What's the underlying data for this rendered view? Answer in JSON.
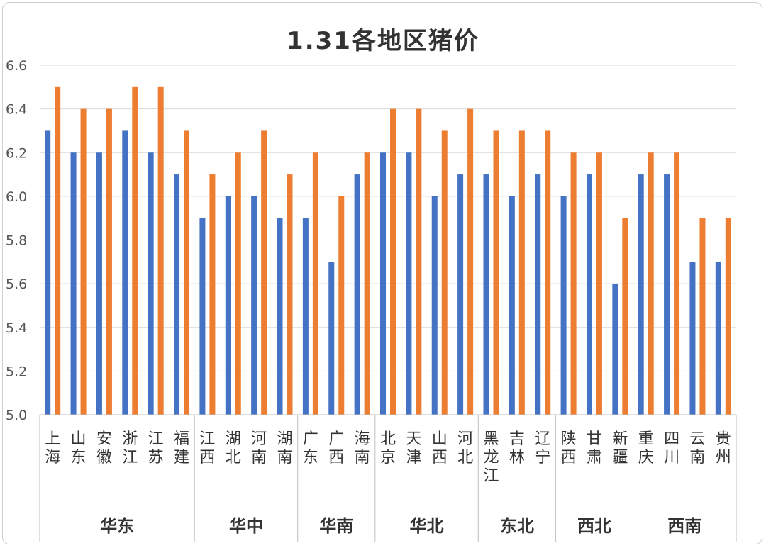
{
  "chart_data": {
    "type": "bar",
    "title": "1.31各地区猪价",
    "ylim": [
      5.0,
      6.6
    ],
    "yticks": [
      "5.0",
      "5.2",
      "5.4",
      "5.6",
      "5.8",
      "6.0",
      "6.2",
      "6.4",
      "6.6"
    ],
    "grid": true,
    "colors": [
      "#4472c4",
      "#ed7d31"
    ],
    "categories": [
      "上海",
      "山东",
      "安徽",
      "浙江",
      "江苏",
      "福建",
      "江西",
      "湖北",
      "河南",
      "湖南",
      "广东",
      "广西",
      "海南",
      "北京",
      "天津",
      "山西",
      "河北",
      "黑龙江",
      "吉林",
      "辽宁",
      "陕西",
      "甘肃",
      "新疆",
      "重庆",
      "四川",
      "云南",
      "贵州"
    ],
    "groups": [
      {
        "name": "华东",
        "count": 6
      },
      {
        "name": "华中",
        "count": 4
      },
      {
        "name": "华南",
        "count": 3
      },
      {
        "name": "华北",
        "count": 4
      },
      {
        "name": "东北",
        "count": 3
      },
      {
        "name": "西北",
        "count": 3
      },
      {
        "name": "西南",
        "count": 4
      }
    ],
    "series": [
      {
        "values": [
          6.3,
          6.2,
          6.2,
          6.3,
          6.2,
          6.1,
          5.9,
          6.0,
          6.0,
          5.9,
          5.9,
          5.7,
          6.1,
          6.2,
          6.2,
          6.0,
          6.1,
          6.1,
          6.0,
          6.1,
          6.0,
          6.1,
          5.6,
          6.1,
          6.1,
          5.7,
          5.7
        ]
      },
      {
        "values": [
          6.5,
          6.4,
          6.4,
          6.5,
          6.5,
          6.3,
          6.1,
          6.2,
          6.3,
          6.1,
          6.2,
          6.0,
          6.2,
          6.4,
          6.4,
          6.3,
          6.4,
          6.3,
          6.3,
          6.3,
          6.2,
          6.2,
          5.9,
          6.2,
          6.2,
          5.9,
          5.9
        ]
      }
    ]
  }
}
